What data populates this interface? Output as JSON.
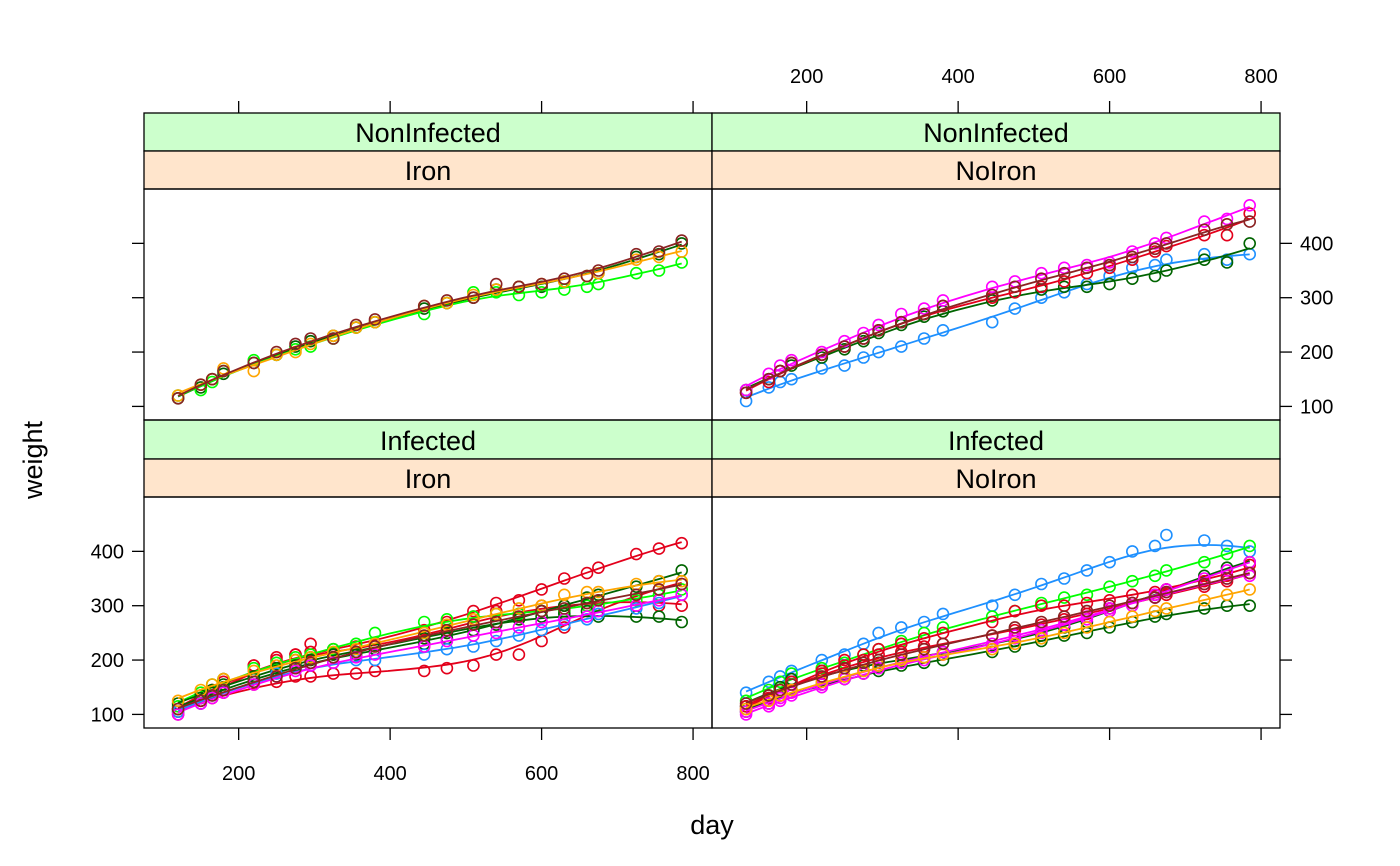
{
  "chart_data": {
    "type": "scatter",
    "xlabel": "day",
    "ylabel": "weight",
    "xlim": [
      75,
      825
    ],
    "ylim": [
      75,
      500
    ],
    "x_ticks": [
      200,
      400,
      600,
      800
    ],
    "y_ticks": [
      100,
      200,
      300,
      400
    ],
    "days": [
      120,
      150,
      165,
      180,
      220,
      250,
      275,
      295,
      325,
      355,
      380,
      445,
      475,
      510,
      540,
      570,
      600,
      630,
      660,
      675,
      725,
      755,
      785
    ],
    "panels": [
      {
        "strip_top": "Infected",
        "strip_bottom": "Iron",
        "series": [
          {
            "color": "#e3001b",
            "values": [
              110,
              130,
              145,
              165,
              190,
              205,
              210,
              215,
              220,
              225,
              230,
              255,
              270,
              290,
              305,
              310,
              330,
              350,
              360,
              370,
              395,
              405,
              415
            ]
          },
          {
            "color": "#e3001b",
            "values": [
              105,
              120,
              130,
              140,
              155,
              160,
              170,
              170,
              175,
              175,
              180,
              180,
              185,
              190,
              210,
              210,
              235,
              260,
              300,
              300,
              320,
              330,
              340
            ]
          },
          {
            "color": "#e3001b",
            "values": [
              100,
              125,
              140,
              160,
              190,
              200,
              210,
              230,
              210,
              215,
              220,
              240,
              250,
              280,
              290,
              285,
              300,
              300,
              305,
              310,
              320,
              300,
              300
            ]
          },
          {
            "color": "#00ff00",
            "values": [
              115,
              140,
              155,
              165,
              185,
              195,
              205,
              210,
              220,
              230,
              250,
              270,
              275,
              280,
              285,
              285,
              290,
              290,
              300,
              300,
              310,
              320,
              330
            ]
          },
          {
            "color": "#006400",
            "values": [
              110,
              130,
              140,
              150,
              165,
              180,
              190,
              200,
              205,
              210,
              220,
              230,
              240,
              255,
              265,
              275,
              290,
              300,
              315,
              320,
              335,
              345,
              365
            ]
          },
          {
            "color": "#006400",
            "values": [
              120,
              135,
              145,
              155,
              170,
              185,
              200,
              205,
              210,
              215,
              220,
              240,
              250,
              265,
              270,
              275,
              280,
              285,
              290,
              280,
              280,
              280,
              270
            ]
          },
          {
            "color": "#1e90ff",
            "values": [
              105,
              120,
              135,
              145,
              160,
              175,
              185,
              190,
              195,
              200,
              200,
              210,
              220,
              225,
              235,
              245,
              255,
              265,
              275,
              285,
              295,
              305,
              320
            ]
          },
          {
            "color": "#ffa500",
            "values": [
              125,
              145,
              155,
              165,
              180,
              190,
              200,
              205,
              215,
              220,
              230,
              250,
              265,
              275,
              285,
              295,
              300,
              320,
              325,
              325,
              340,
              345,
              345
            ]
          },
          {
            "color": "#ff00ff",
            "values": [
              100,
              120,
              130,
              140,
              155,
              170,
              180,
              190,
              195,
              205,
              210,
              225,
              235,
              245,
              250,
              260,
              270,
              275,
              280,
              290,
              300,
              310,
              320
            ]
          },
          {
            "color": "#8b2323",
            "values": [
              110,
              125,
              135,
              145,
              160,
              170,
              185,
              195,
              205,
              215,
              225,
              245,
              255,
              265,
              270,
              280,
              290,
              295,
              305,
              310,
              320,
              330,
              340
            ]
          }
        ]
      },
      {
        "strip_top": "Infected",
        "strip_bottom": "NoIron",
        "series": [
          {
            "color": "#1e90ff",
            "values": [
              140,
              160,
              170,
              180,
              200,
              210,
              230,
              250,
              260,
              270,
              285,
              300,
              320,
              340,
              350,
              365,
              380,
              400,
              410,
              430,
              420,
              410,
              400
            ]
          },
          {
            "color": "#00ff00",
            "values": [
              125,
              145,
              160,
              175,
              185,
              195,
              210,
              220,
              235,
              250,
              260,
              280,
              290,
              305,
              315,
              320,
              335,
              345,
              355,
              365,
              380,
              395,
              410
            ]
          },
          {
            "color": "#006400",
            "values": [
              115,
              135,
              150,
              165,
              180,
              185,
              190,
              195,
              200,
              205,
              215,
              225,
              235,
              245,
              260,
              270,
              290,
              305,
              320,
              330,
              355,
              370,
              380
            ]
          },
          {
            "color": "#006400",
            "values": [
              105,
              120,
              135,
              145,
              155,
              165,
              175,
              180,
              190,
              195,
              200,
              215,
              225,
              235,
              245,
              250,
              260,
              270,
              280,
              285,
              295,
              300,
              300
            ]
          },
          {
            "color": "#e3001b",
            "values": [
              110,
              130,
              145,
              160,
              180,
              200,
              210,
              220,
              230,
              240,
              250,
              270,
              290,
              300,
              300,
              305,
              310,
              320,
              325,
              330,
              345,
              355,
              375
            ]
          },
          {
            "color": "#e3001b",
            "values": [
              115,
              130,
              145,
              160,
              175,
              190,
              200,
              210,
              215,
              225,
              230,
              245,
              255,
              265,
              275,
              285,
              295,
              305,
              315,
              320,
              335,
              345,
              360
            ]
          },
          {
            "color": "#ff00ff",
            "values": [
              100,
              115,
              125,
              135,
              150,
              165,
              175,
              185,
              195,
              200,
              210,
              225,
              240,
              250,
              265,
              275,
              290,
              300,
              320,
              330,
              350,
              365,
              380
            ]
          },
          {
            "color": "#ff00ff",
            "values": [
              105,
              120,
              130,
              140,
              155,
              170,
              180,
              190,
              200,
              205,
              215,
              230,
              245,
              255,
              265,
              280,
              295,
              305,
              315,
              325,
              340,
              350,
              355
            ]
          },
          {
            "color": "#ffa500",
            "values": [
              110,
              125,
              135,
              145,
              160,
              170,
              180,
              190,
              200,
              205,
              210,
              220,
              230,
              240,
              250,
              260,
              270,
              280,
              290,
              295,
              310,
              320,
              330
            ]
          },
          {
            "color": "#8b2323",
            "values": [
              120,
              135,
              145,
              155,
              170,
              185,
              195,
              200,
              210,
              220,
              230,
              245,
              260,
              270,
              280,
              290,
              300,
              305,
              315,
              325,
              340,
              350,
              360
            ]
          }
        ]
      },
      {
        "strip_top": "NonInfected",
        "strip_bottom": "Iron",
        "series": [
          {
            "color": "#006400",
            "values": [
              115,
              135,
              150,
              160,
              180,
              195,
              210,
              220,
              230,
              245,
              255,
              280,
              290,
              300,
              315,
              320,
              320,
              330,
              340,
              345,
              375,
              380,
              400
            ]
          },
          {
            "color": "#00ff00",
            "values": [
              120,
              130,
              145,
              165,
              185,
              195,
              205,
              210,
              225,
              245,
              255,
              270,
              290,
              310,
              310,
              305,
              310,
              315,
              320,
              325,
              345,
              350,
              365
            ]
          },
          {
            "color": "#ffa500",
            "values": [
              120,
              140,
              150,
              170,
              165,
              195,
              200,
              215,
              230,
              245,
              255,
              285,
              290,
              305,
              315,
              320,
              325,
              330,
              340,
              345,
              370,
              375,
              385
            ]
          },
          {
            "color": "#8b2323",
            "values": [
              115,
              140,
              150,
              165,
              180,
              200,
              215,
              225,
              225,
              250,
              260,
              285,
              295,
              300,
              325,
              320,
              325,
              335,
              340,
              350,
              380,
              385,
              405
            ]
          }
        ]
      },
      {
        "strip_top": "NonInfected",
        "strip_bottom": "NoIron",
        "series": [
          {
            "color": "#1e90ff",
            "values": [
              110,
              135,
              145,
              150,
              170,
              175,
              190,
              200,
              210,
              225,
              240,
              255,
              280,
              300,
              310,
              325,
              340,
              355,
              360,
              370,
              380,
              370,
              380
            ]
          },
          {
            "color": "#006400",
            "values": [
              130,
              150,
              165,
              175,
              190,
              205,
              220,
              235,
              250,
              265,
              275,
              295,
              310,
              315,
              320,
              320,
              325,
              335,
              340,
              350,
              370,
              365,
              400
            ]
          },
          {
            "color": "#e3001b",
            "values": [
              125,
              145,
              165,
              180,
              195,
              210,
              225,
              240,
              255,
              270,
              285,
              300,
              310,
              320,
              330,
              345,
              355,
              370,
              385,
              395,
              415,
              415,
              455
            ]
          },
          {
            "color": "#ff00ff",
            "values": [
              130,
              160,
              175,
              185,
              200,
              220,
              235,
              250,
              270,
              280,
              295,
              320,
              330,
              345,
              355,
              360,
              365,
              385,
              400,
              410,
              440,
              445,
              470
            ]
          },
          {
            "color": "#8b2323",
            "values": [
              125,
              150,
              165,
              180,
              195,
              210,
              225,
              240,
              255,
              270,
              285,
              305,
              320,
              335,
              345,
              355,
              360,
              375,
              390,
              400,
              425,
              435,
              440
            ]
          }
        ]
      }
    ]
  }
}
